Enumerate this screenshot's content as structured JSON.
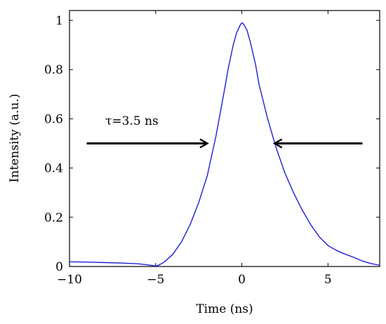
{
  "chart_data": {
    "type": "line",
    "title": "",
    "xlabel": "Time (ns)",
    "ylabel": "Intensity (a.u.)",
    "xlim": [
      -10,
      8
    ],
    "ylim": [
      0,
      1.04
    ],
    "x_ticks": [
      -10,
      -5,
      0,
      5
    ],
    "x_tick_labels": [
      "−10",
      "−5",
      "0",
      "5"
    ],
    "y_ticks": [
      0,
      0.2,
      0.4,
      0.6,
      0.8,
      1
    ],
    "y_tick_labels": [
      "0",
      "0.2",
      "0.4",
      "0.6",
      "0.8",
      "1"
    ],
    "grid": false,
    "series": [
      {
        "color": "#1f1fd6",
        "x": [
          -10,
          -9,
          -8,
          -7,
          -6,
          -5.5,
          -5.2,
          -5,
          -4.8,
          -4.5,
          -4,
          -3.5,
          -3,
          -2.5,
          -2,
          -1.5,
          -1,
          -0.8,
          -0.5,
          -0.3,
          -0.1,
          0,
          0.1,
          0.3,
          0.5,
          0.8,
          1,
          1.5,
          2,
          2.5,
          3,
          3.5,
          4,
          4.5,
          5,
          5.5,
          6,
          6.5,
          7,
          7.5,
          8
        ],
        "y": [
          0.019,
          0.018,
          0.016,
          0.014,
          0.011,
          0.007,
          0.004,
          0.002,
          0.006,
          0.018,
          0.05,
          0.1,
          0.17,
          0.26,
          0.37,
          0.53,
          0.72,
          0.8,
          0.9,
          0.95,
          0.98,
          0.99,
          0.985,
          0.96,
          0.91,
          0.82,
          0.74,
          0.6,
          0.48,
          0.38,
          0.3,
          0.23,
          0.17,
          0.12,
          0.085,
          0.065,
          0.05,
          0.037,
          0.022,
          0.012,
          0.005
        ]
      }
    ],
    "annotations": [
      {
        "text": "τ=3.5 ns"
      }
    ],
    "arrows": [
      {
        "from": [
          -9,
          0.5
        ],
        "to": [
          -2,
          0.5
        ]
      },
      {
        "from": [
          7,
          0.5
        ],
        "to": [
          1.9,
          0.5
        ]
      }
    ]
  }
}
